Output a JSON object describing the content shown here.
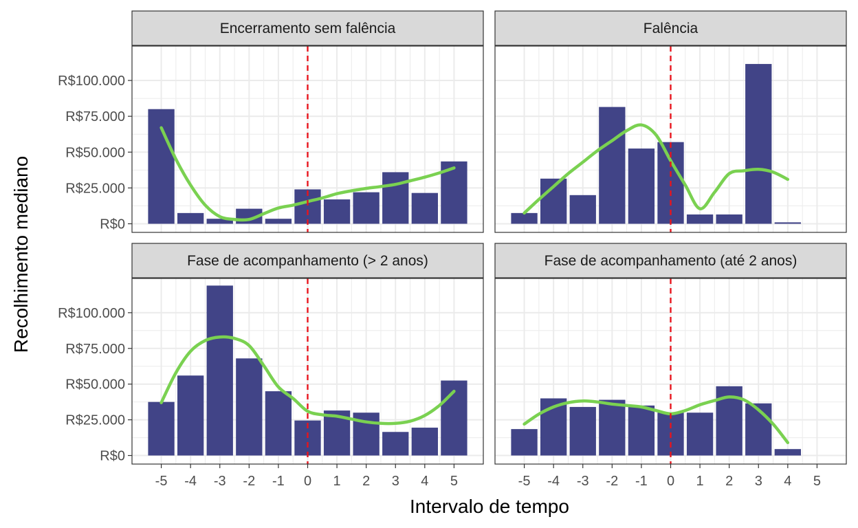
{
  "chart_data": {
    "type": "bar",
    "layout": "facet-grid 2x2",
    "xlabel": "Intervalo de tempo",
    "ylabel": "Recolhimento mediano",
    "x_ticks": [
      -5,
      -4,
      -3,
      -2,
      -1,
      0,
      1,
      2,
      3,
      4,
      5
    ],
    "y_ticks": [
      0,
      25000,
      50000,
      75000,
      100000
    ],
    "y_tick_labels": [
      "R$0",
      "R$25.000",
      "R$50.000",
      "R$75.000",
      "R$100.000"
    ],
    "xlim": [
      -6,
      6
    ],
    "ylim": [
      -6000,
      124000
    ],
    "reference_line": {
      "x": 0,
      "style": "dashed",
      "color": "#e8141c"
    },
    "colors": {
      "bar": "#414487",
      "smooth": "#7ad151",
      "strip": "#d9d9d9",
      "grid": "#ebebeb"
    },
    "panels": [
      {
        "title": "Encerramento sem falência",
        "bars": {
          "x": [
            -5,
            -4,
            -3,
            -2,
            -1,
            0,
            1,
            2,
            3,
            4,
            5
          ],
          "y": [
            80000,
            7500,
            3500,
            10500,
            3500,
            24000,
            17000,
            22000,
            36000,
            21500,
            43500
          ]
        },
        "smooth": {
          "x": [
            -5,
            -4.5,
            -4,
            -3.5,
            -3,
            -2.5,
            -2,
            -1.5,
            -1,
            -0.5,
            0,
            0.5,
            1,
            1.5,
            2,
            2.5,
            3,
            3.5,
            4,
            4.5,
            5
          ],
          "y": [
            67000,
            45000,
            27000,
            13000,
            5000,
            3000,
            3000,
            7000,
            11000,
            13000,
            15500,
            18000,
            21000,
            23000,
            24700,
            26000,
            27500,
            30000,
            32500,
            35500,
            39000
          ]
        }
      },
      {
        "title": "Falência",
        "bars": {
          "x": [
            -5,
            -4,
            -3,
            -2,
            -1,
            0,
            1,
            2,
            3,
            4
          ],
          "y": [
            7500,
            31500,
            20000,
            81500,
            52500,
            57000,
            6500,
            6500,
            111500,
            1000
          ]
        },
        "smooth": {
          "x": [
            -5,
            -4.5,
            -4,
            -3.5,
            -3,
            -2.5,
            -2,
            -1.5,
            -1,
            -0.5,
            0,
            0.5,
            1,
            1.5,
            2,
            2.5,
            3,
            3.5,
            4
          ],
          "y": [
            7500,
            17000,
            26000,
            35000,
            43000,
            51000,
            58000,
            65000,
            69000,
            62000,
            44000,
            27000,
            10500,
            22000,
            35000,
            37000,
            38000,
            36000,
            31000
          ]
        }
      },
      {
        "title": "Fase de acompanhamento (> 2 anos)",
        "bars": {
          "x": [
            -5,
            -4,
            -3,
            -2,
            -1,
            0,
            1,
            2,
            3,
            4,
            5
          ],
          "y": [
            37500,
            56000,
            119000,
            68000,
            45000,
            24500,
            31500,
            30000,
            16500,
            19500,
            52500
          ]
        },
        "smooth": {
          "x": [
            -5,
            -4.5,
            -4,
            -3.5,
            -3,
            -2.5,
            -2,
            -1.5,
            -1,
            -0.5,
            0,
            0.5,
            1,
            1.5,
            2,
            2.5,
            3,
            3.5,
            4,
            4.5,
            5
          ],
          "y": [
            37000,
            58000,
            73000,
            80500,
            83000,
            82000,
            77000,
            63000,
            48000,
            40000,
            31000,
            28500,
            27500,
            25500,
            23500,
            22500,
            22500,
            24000,
            28000,
            35000,
            45000
          ]
        }
      },
      {
        "title": "Fase de acompanhamento (até 2 anos)",
        "bars": {
          "x": [
            -5,
            -4,
            -3,
            -2,
            -1,
            0,
            1,
            2,
            3,
            4
          ],
          "y": [
            18500,
            40000,
            34000,
            39000,
            35000,
            30000,
            30000,
            48500,
            36500,
            4500
          ]
        },
        "smooth": {
          "x": [
            -5,
            -4.5,
            -4,
            -3.5,
            -3,
            -2.5,
            -2,
            -1.5,
            -1,
            -0.5,
            0,
            0.5,
            1,
            1.5,
            2,
            2.5,
            3,
            3.5,
            4
          ],
          "y": [
            22000,
            29000,
            34000,
            37000,
            38200,
            37500,
            36000,
            35000,
            34000,
            31500,
            29200,
            31500,
            35500,
            38500,
            41000,
            39000,
            32000,
            22000,
            9000
          ]
        }
      }
    ]
  }
}
